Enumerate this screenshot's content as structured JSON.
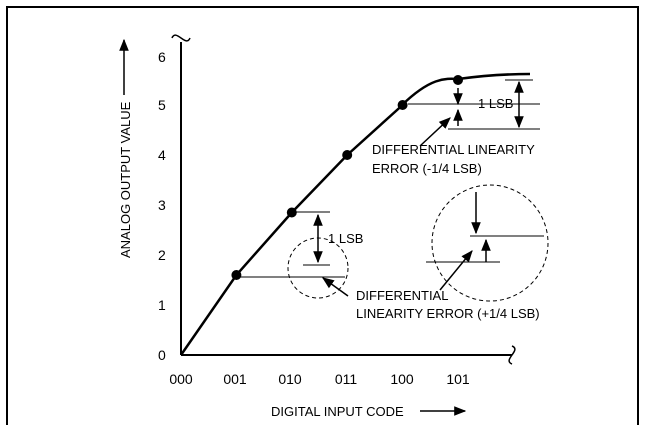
{
  "figure": {
    "y_axis_label": "ANALOG OUTPUT VALUE",
    "x_axis_label": "DIGITAL INPUT CODE",
    "y_ticks": [
      "0",
      "1",
      "2",
      "3",
      "4",
      "5",
      "6"
    ],
    "x_ticks": [
      "000",
      "001",
      "010",
      "011",
      "100",
      "101"
    ],
    "annotations": {
      "lsb_upper": "1 LSB",
      "lsb_lower": "1 LSB",
      "dle_negative_line1": "DIFFERENTIAL LINEARITY",
      "dle_negative_line2": "ERROR (-1/4 LSB)",
      "dle_positive_line1": "DIFFERENTIAL",
      "dle_positive_line2": "LINEARITY ERROR (+1/4 LSB)"
    }
  },
  "chart_data": {
    "type": "line",
    "x": [
      "000",
      "001",
      "010",
      "011",
      "100",
      "101"
    ],
    "series": [
      {
        "values": [
          0,
          1.6,
          2.85,
          4.0,
          5.0,
          5.5
        ]
      }
    ],
    "ylim": [
      0,
      6
    ]
  }
}
